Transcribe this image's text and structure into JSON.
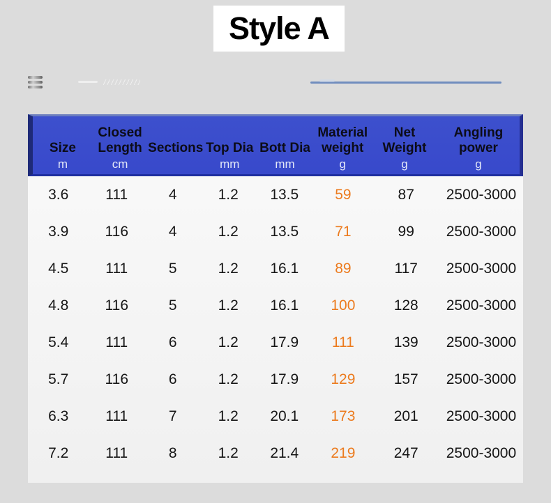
{
  "title": "Style A",
  "colors": {
    "page_background": "#dcdcdc",
    "panel_background": "#f0f0f0",
    "title_background": "#ffffff",
    "title_text": "#000000",
    "header_background": "#3849cb",
    "header_border": "#1e2a78",
    "header_label_text": "#0c0c18",
    "header_unit_text": "#e3e8f8",
    "body_text": "#161616",
    "material_weight_highlight": "#ec7b1e"
  },
  "chart_data": {
    "type": "table",
    "title": "Style A",
    "columns": [
      {
        "label": "Size",
        "unit": "m"
      },
      {
        "label": "Closed Length",
        "unit": "cm"
      },
      {
        "label": "Sections",
        "unit": ""
      },
      {
        "label": "Top Dia",
        "unit": "mm"
      },
      {
        "label": "Bott Dia",
        "unit": "mm"
      },
      {
        "label": "Material weight",
        "unit": "g"
      },
      {
        "label": "Net Weight",
        "unit": "g"
      },
      {
        "label": "Angling power",
        "unit": "g"
      }
    ],
    "highlight_column": "Material weight",
    "rows": [
      [
        "3.6",
        "111",
        "4",
        "1.2",
        "13.5",
        "59",
        "87",
        "2500-3000"
      ],
      [
        "3.9",
        "116",
        "4",
        "1.2",
        "13.5",
        "71",
        "99",
        "2500-3000"
      ],
      [
        "4.5",
        "111",
        "5",
        "1.2",
        "16.1",
        "89",
        "117",
        "2500-3000"
      ],
      [
        "4.8",
        "116",
        "5",
        "1.2",
        "16.1",
        "100",
        "128",
        "2500-3000"
      ],
      [
        "5.4",
        "111",
        "6",
        "1.2",
        "17.9",
        "111",
        "139",
        "2500-3000"
      ],
      [
        "5.7",
        "116",
        "6",
        "1.2",
        "17.9",
        "129",
        "157",
        "2500-3000"
      ],
      [
        "6.3",
        "111",
        "7",
        "1.2",
        "20.1",
        "173",
        "201",
        "2500-3000"
      ],
      [
        "7.2",
        "111",
        "8",
        "1.2",
        "21.4",
        "219",
        "247",
        "2500-3000"
      ]
    ]
  }
}
